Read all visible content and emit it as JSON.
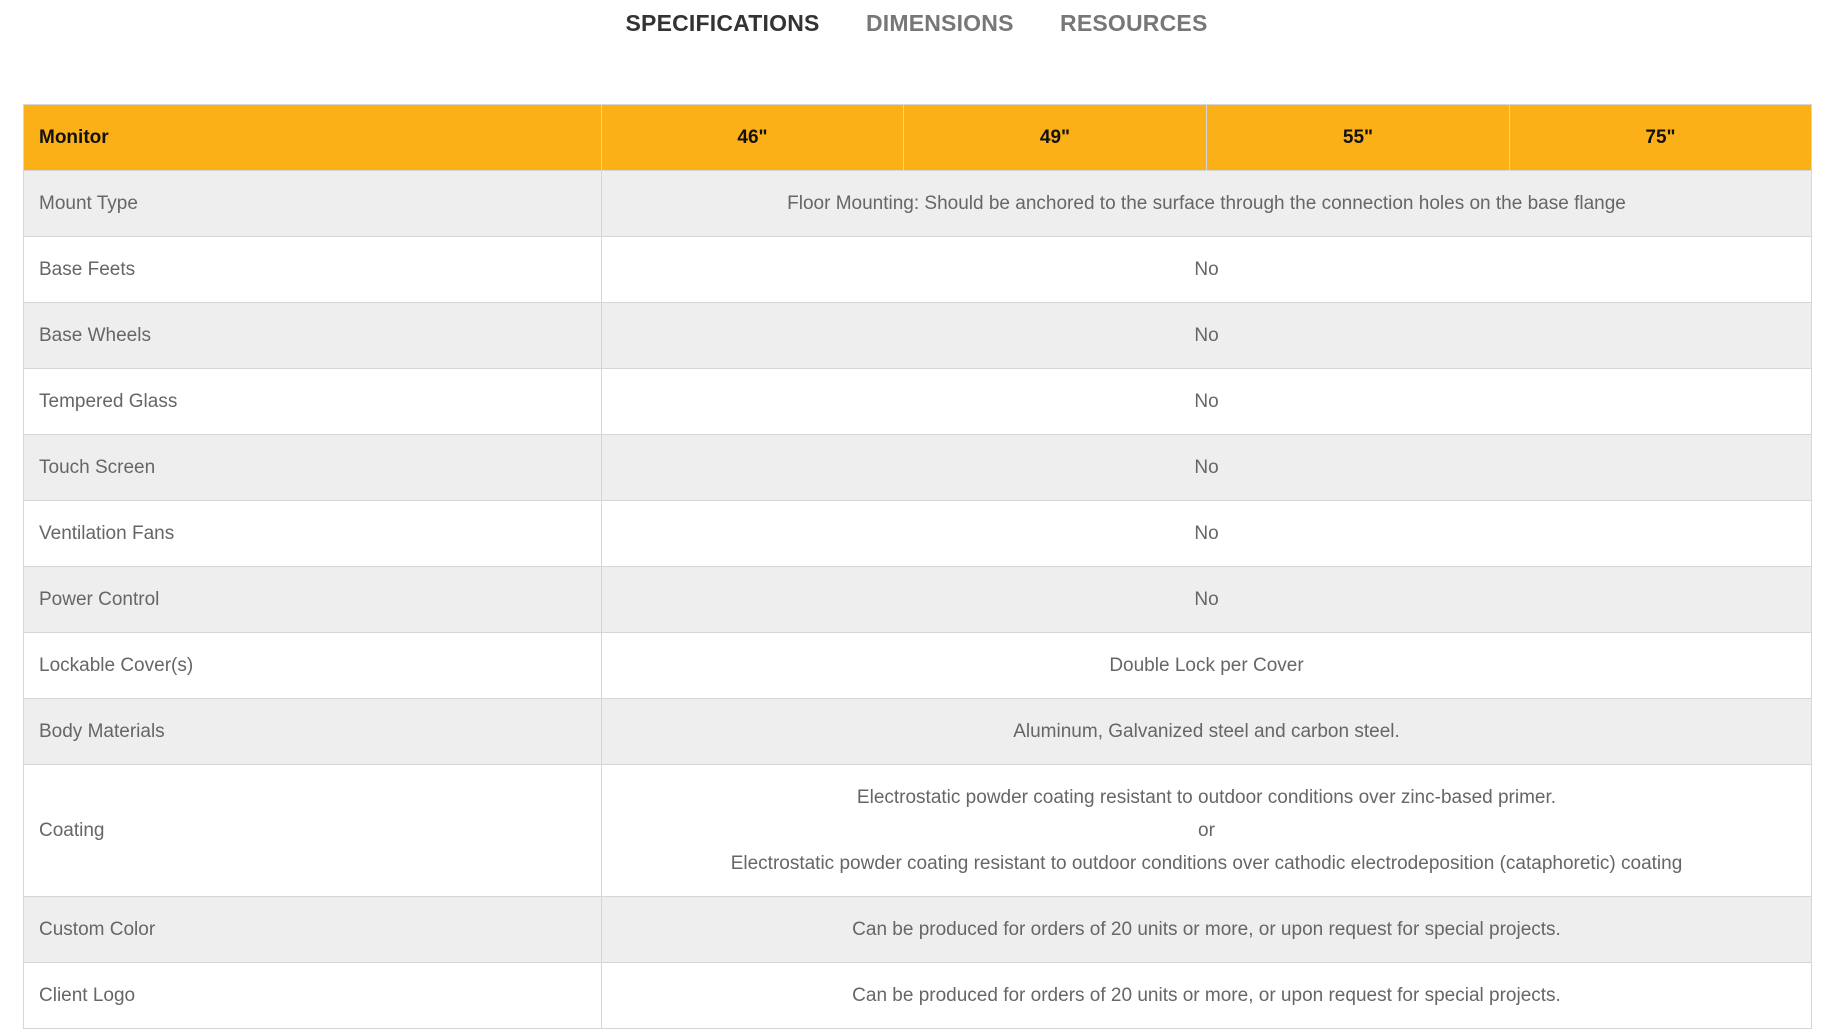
{
  "tabs": [
    {
      "label": "SPECIFICATIONS",
      "active": true
    },
    {
      "label": "DIMENSIONS",
      "active": false
    },
    {
      "label": "RESOURCES",
      "active": false
    }
  ],
  "table": {
    "header": [
      "Monitor",
      "46\"",
      "49\"",
      "55\"",
      "75\""
    ],
    "rows": [
      {
        "label": "Mount Type",
        "value": "Floor Mounting: Should be anchored to the surface through the connection holes on the base flange"
      },
      {
        "label": "Base Feets",
        "value": "No"
      },
      {
        "label": "Base Wheels",
        "value": "No"
      },
      {
        "label": "Tempered Glass",
        "value": "No"
      },
      {
        "label": "Touch Screen",
        "value": "No"
      },
      {
        "label": "Ventilation Fans",
        "value": "No"
      },
      {
        "label": "Power Control",
        "value": "No"
      },
      {
        "label": "Lockable Cover(s)",
        "value": "Double Lock per Cover"
      },
      {
        "label": "Body Materials",
        "value": "Aluminum, Galvanized steel and carbon steel."
      },
      {
        "label": "Coating",
        "lines": [
          "Electrostatic powder coating resistant to outdoor conditions over zinc-based primer.",
          "or",
          "Electrostatic powder coating resistant to outdoor conditions over cathodic electrodeposition (cataphoretic) coating"
        ]
      },
      {
        "label": "Custom Color",
        "value": "Can be produced for orders of 20 units or more, or upon request for special projects."
      },
      {
        "label": "Client Logo",
        "value": "Can be produced for orders of 20 units or more, or upon request for special projects."
      }
    ]
  },
  "colors": {
    "header_bg": "#fcb017",
    "row_alt": "#eeeeee",
    "text": "#666666"
  }
}
